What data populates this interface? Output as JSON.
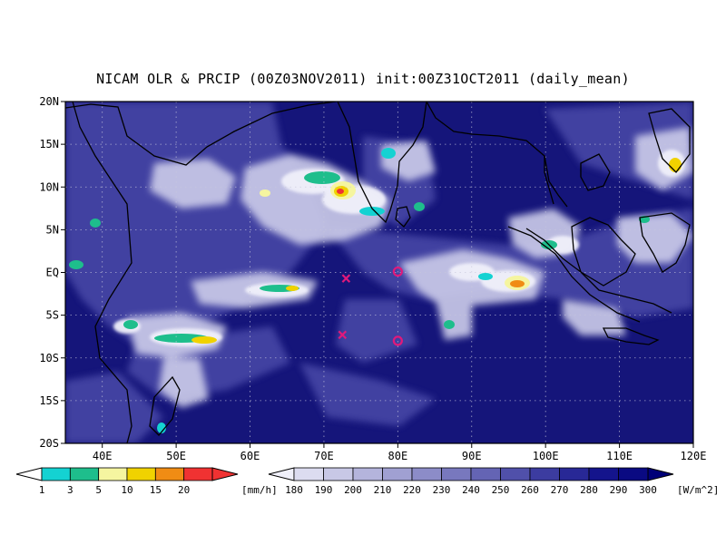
{
  "title": "NICAM OLR & PRCIP (00Z03NOV2011) init:00Z31OCT2011 (daily_mean)",
  "lat_labels": [
    "20N",
    "15N",
    "10N",
    "5N",
    "EQ",
    "5S",
    "10S",
    "15S",
    "20S"
  ],
  "lon_labels": [
    "40E",
    "50E",
    "60E",
    "70E",
    "80E",
    "90E",
    "100E",
    "110E",
    "120E"
  ],
  "map_extent": {
    "lon": [
      35,
      120
    ],
    "lat": [
      -20,
      20
    ]
  },
  "colors": {
    "ocean_dark": "#15157a",
    "ocean_mid": "#2f3495",
    "cloud_light": "#d8d8ec",
    "coast": "#000000",
    "grid": "#c8c8dc",
    "marker": "#e0197b"
  },
  "precip_colorbar": {
    "labels": [
      "1",
      "3",
      "5",
      "10",
      "15",
      "20"
    ],
    "unit": "[mm/h]",
    "colors": [
      "#14d2d2",
      "#1ebe8c",
      "#f5f5a0",
      "#f0d200",
      "#f08c14",
      "#f03232"
    ]
  },
  "olr_colorbar": {
    "labels": [
      "180",
      "190",
      "200",
      "210",
      "220",
      "230",
      "240",
      "250",
      "260",
      "270",
      "280",
      "290",
      "300"
    ],
    "unit": "[W/m^2]",
    "colors": [
      "#f0f0fa",
      "#dcdcf0",
      "#c8c8e6",
      "#b4b4dc",
      "#a0a0d2",
      "#8c8cc8",
      "#7878be",
      "#6464b4",
      "#5050aa",
      "#3c3ca0",
      "#282896",
      "#14148c",
      "#0a0a82",
      "#000078"
    ]
  },
  "markers": [
    {
      "type": "x",
      "lon": 73,
      "lat": -0.7
    },
    {
      "type": "x",
      "lon": 72.5,
      "lat": -7.3
    },
    {
      "type": "circle",
      "lon": 80,
      "lat": 0.1
    },
    {
      "type": "circle",
      "lon": 80,
      "lat": -8.0
    }
  ]
}
